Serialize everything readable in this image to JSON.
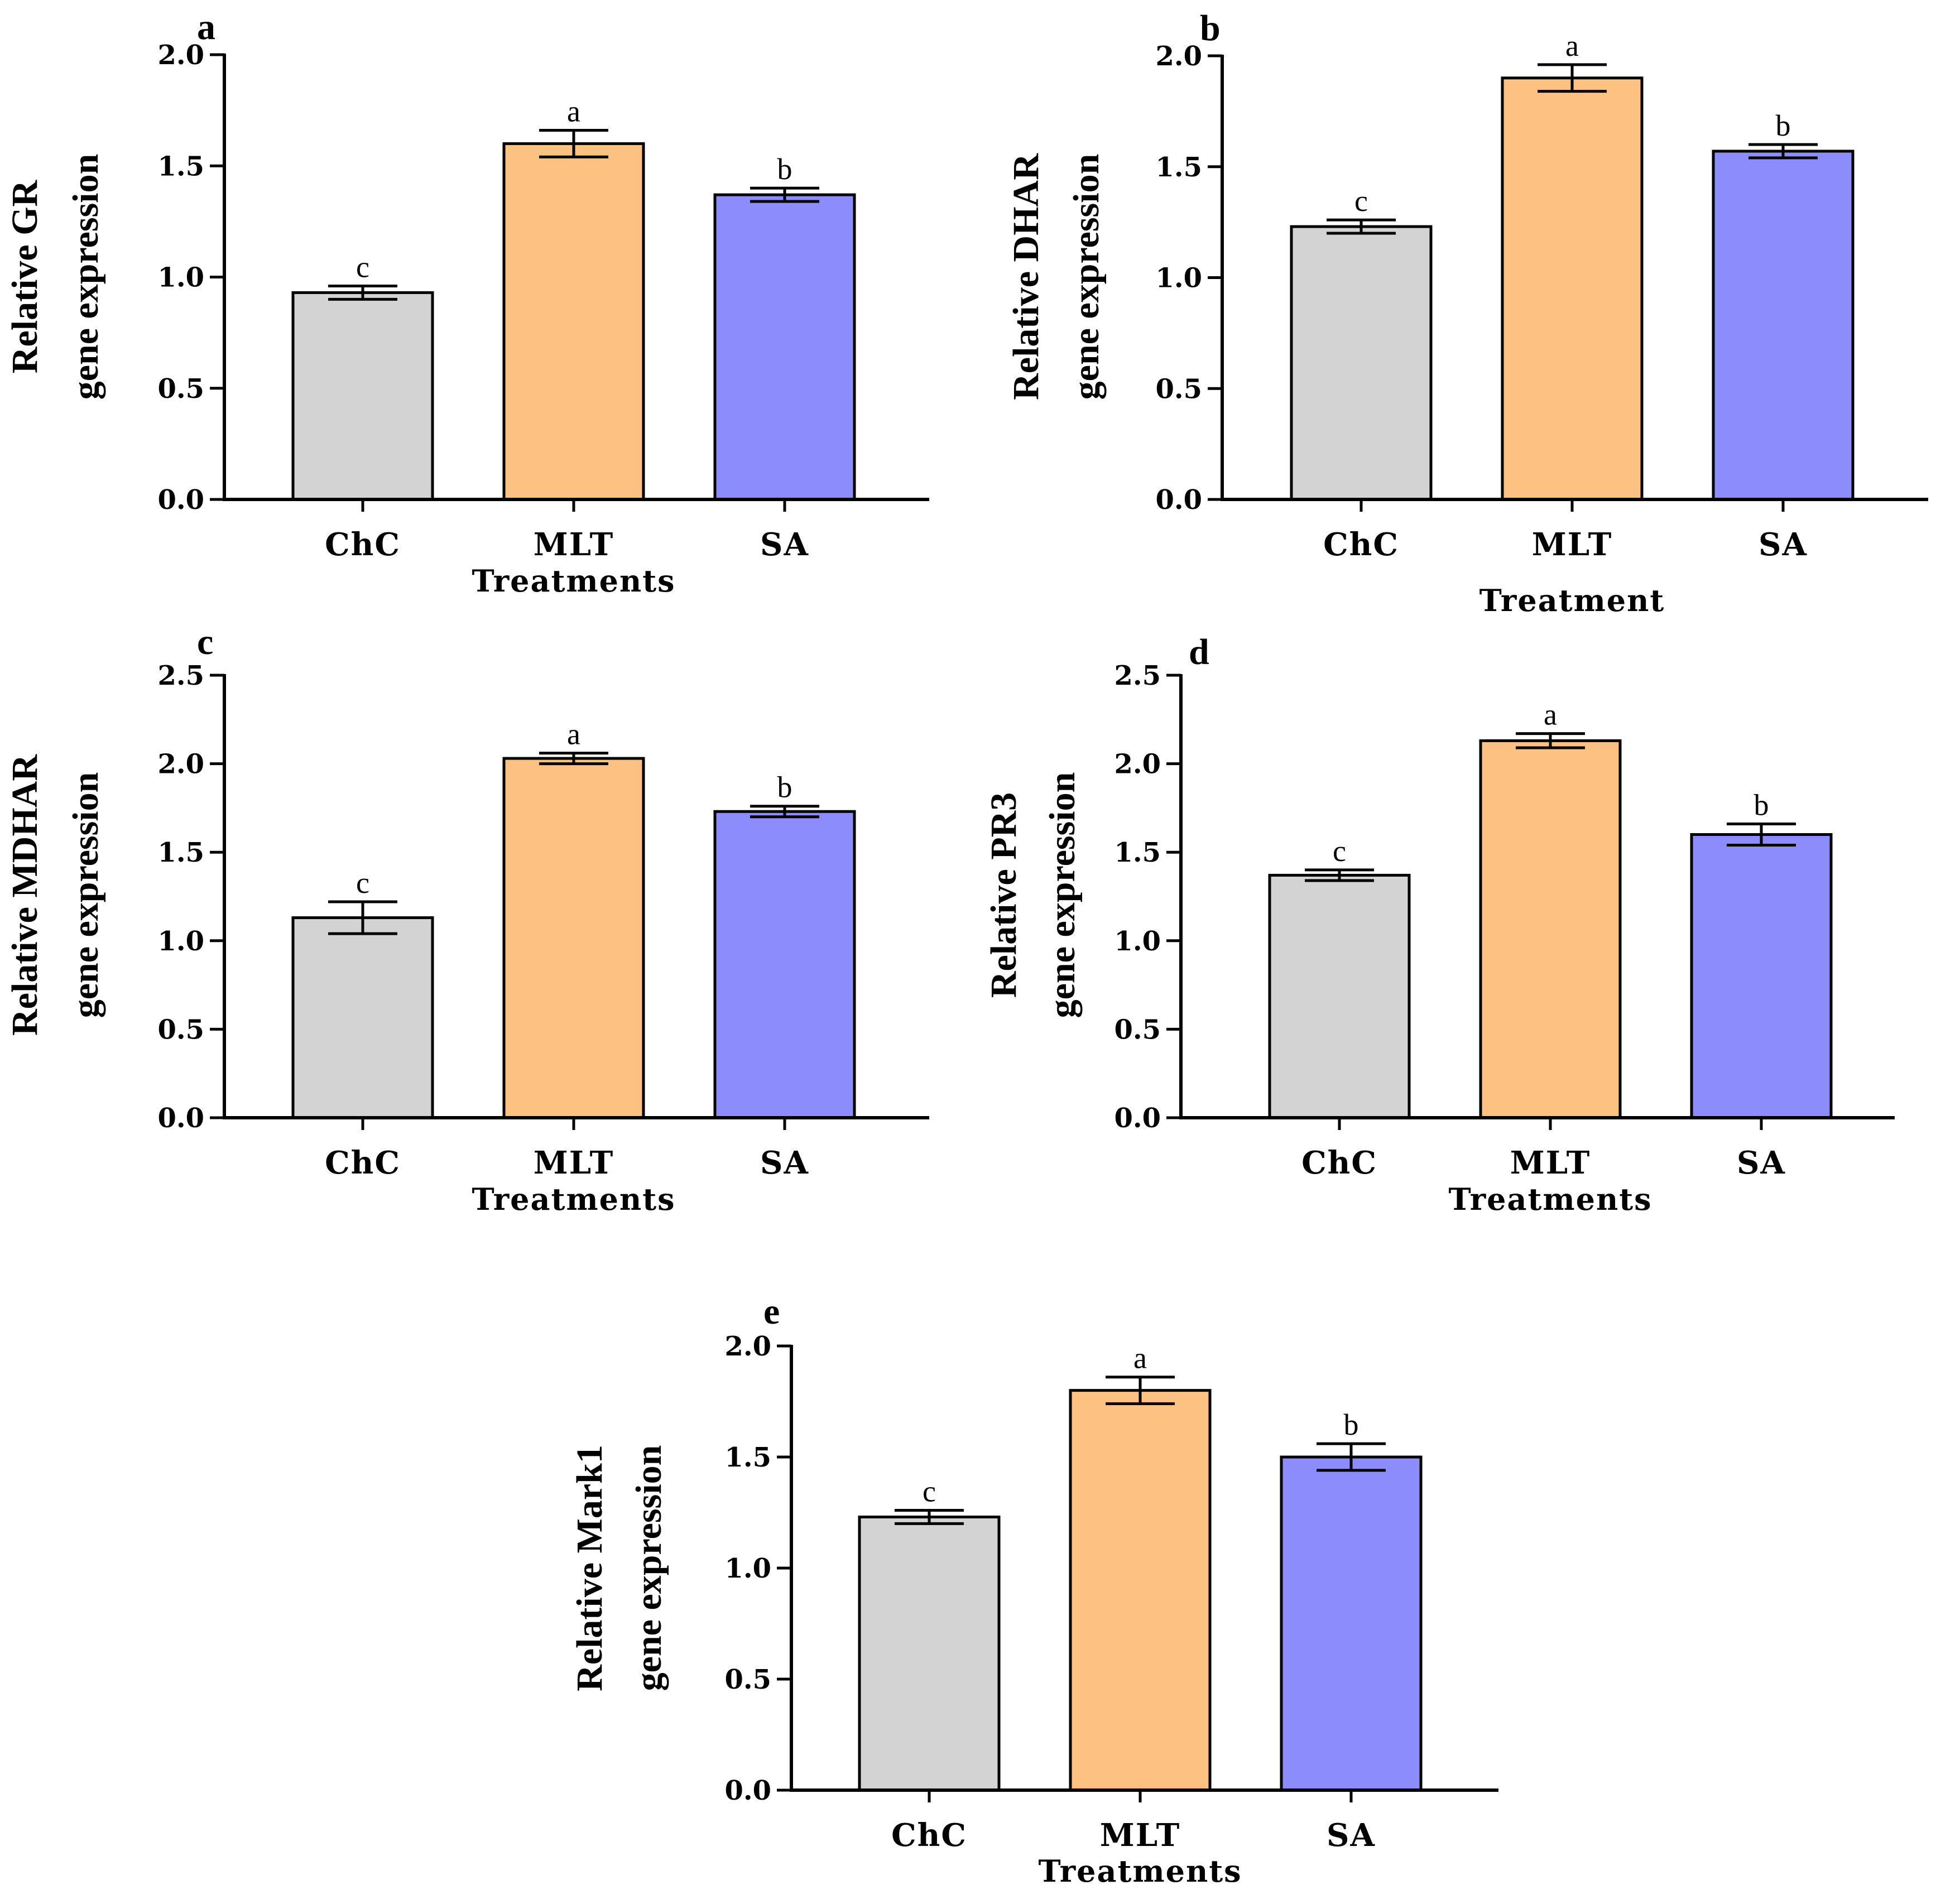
{
  "figure": {
    "colors": {
      "ChC": "#d3d3d3",
      "MLT": "#fdc181",
      "SA": "#8c8cfc"
    },
    "axis_color": "#000000"
  },
  "chart_data": [
    {
      "type": "bar",
      "panel": "a",
      "categories": [
        "ChC",
        "MLT",
        "SA"
      ],
      "values": [
        0.93,
        1.6,
        1.37
      ],
      "errors": [
        0.03,
        0.06,
        0.03
      ],
      "significance": [
        "c",
        "a",
        "b"
      ],
      "ylabel_line1": "Relative GR",
      "ylabel_line2": "gene expression",
      "xlabel": "Treatments",
      "ylim": [
        0,
        2.0
      ],
      "yticks": [
        0.0,
        0.5,
        1.0,
        1.5,
        2.0
      ],
      "ytick_labels": [
        "0.0",
        "0.5",
        "1.0",
        "1.5",
        "2.0"
      ]
    },
    {
      "type": "bar",
      "panel": "b",
      "categories": [
        "ChC",
        "MLT",
        "SA"
      ],
      "values": [
        1.23,
        1.9,
        1.57
      ],
      "errors": [
        0.03,
        0.06,
        0.03
      ],
      "significance": [
        "c",
        "a",
        "b"
      ],
      "ylabel_line1": "Relative DHAR",
      "ylabel_line2": "gene expression",
      "xlabel": "Treatment",
      "ylim": [
        0,
        2.0
      ],
      "yticks": [
        0.0,
        0.5,
        1.0,
        1.5,
        2.0
      ],
      "ytick_labels": [
        "0.0",
        "0.5",
        "1.0",
        "1.5",
        "2.0"
      ]
    },
    {
      "type": "bar",
      "panel": "c",
      "categories": [
        "ChC",
        "MLT",
        "SA"
      ],
      "values": [
        1.13,
        2.03,
        1.73
      ],
      "errors": [
        0.09,
        0.03,
        0.03
      ],
      "significance": [
        "c",
        "a",
        "b"
      ],
      "ylabel_line1": "Relative MDHAR",
      "ylabel_line2": "gene expression",
      "xlabel": "Treatments",
      "ylim": [
        0,
        2.5
      ],
      "yticks": [
        0.0,
        0.5,
        1.0,
        1.5,
        2.0,
        2.5
      ],
      "ytick_labels": [
        "0.0",
        "0.5",
        "1.0",
        "1.5",
        "2.0",
        "2.5"
      ]
    },
    {
      "type": "bar",
      "panel": "d",
      "categories": [
        "ChC",
        "MLT",
        "SA"
      ],
      "values": [
        1.37,
        2.13,
        1.6
      ],
      "errors": [
        0.03,
        0.04,
        0.06
      ],
      "significance": [
        "c",
        "a",
        "b"
      ],
      "ylabel_line1": "Relative PR3",
      "ylabel_line2": "gene expression",
      "xlabel": "Treatments",
      "ylim": [
        0,
        2.5
      ],
      "yticks": [
        0.0,
        0.5,
        1.0,
        1.5,
        2.0,
        2.5
      ],
      "ytick_labels": [
        "0.0",
        "0.5",
        "1.0",
        "1.5",
        "2.0",
        "2.5"
      ]
    },
    {
      "type": "bar",
      "panel": "e",
      "categories": [
        "ChC",
        "MLT",
        "SA"
      ],
      "values": [
        1.23,
        1.8,
        1.5
      ],
      "errors": [
        0.03,
        0.06,
        0.06
      ],
      "significance": [
        "c",
        "a",
        "b"
      ],
      "ylabel_line1": "Relative Mark1",
      "ylabel_line2": "gene expression",
      "xlabel": "Treatments",
      "ylim": [
        0,
        2.0
      ],
      "yticks": [
        0.0,
        0.5,
        1.0,
        1.5,
        2.0
      ],
      "ytick_labels": [
        "0.0",
        "0.5",
        "1.0",
        "1.5",
        "2.0"
      ]
    }
  ]
}
